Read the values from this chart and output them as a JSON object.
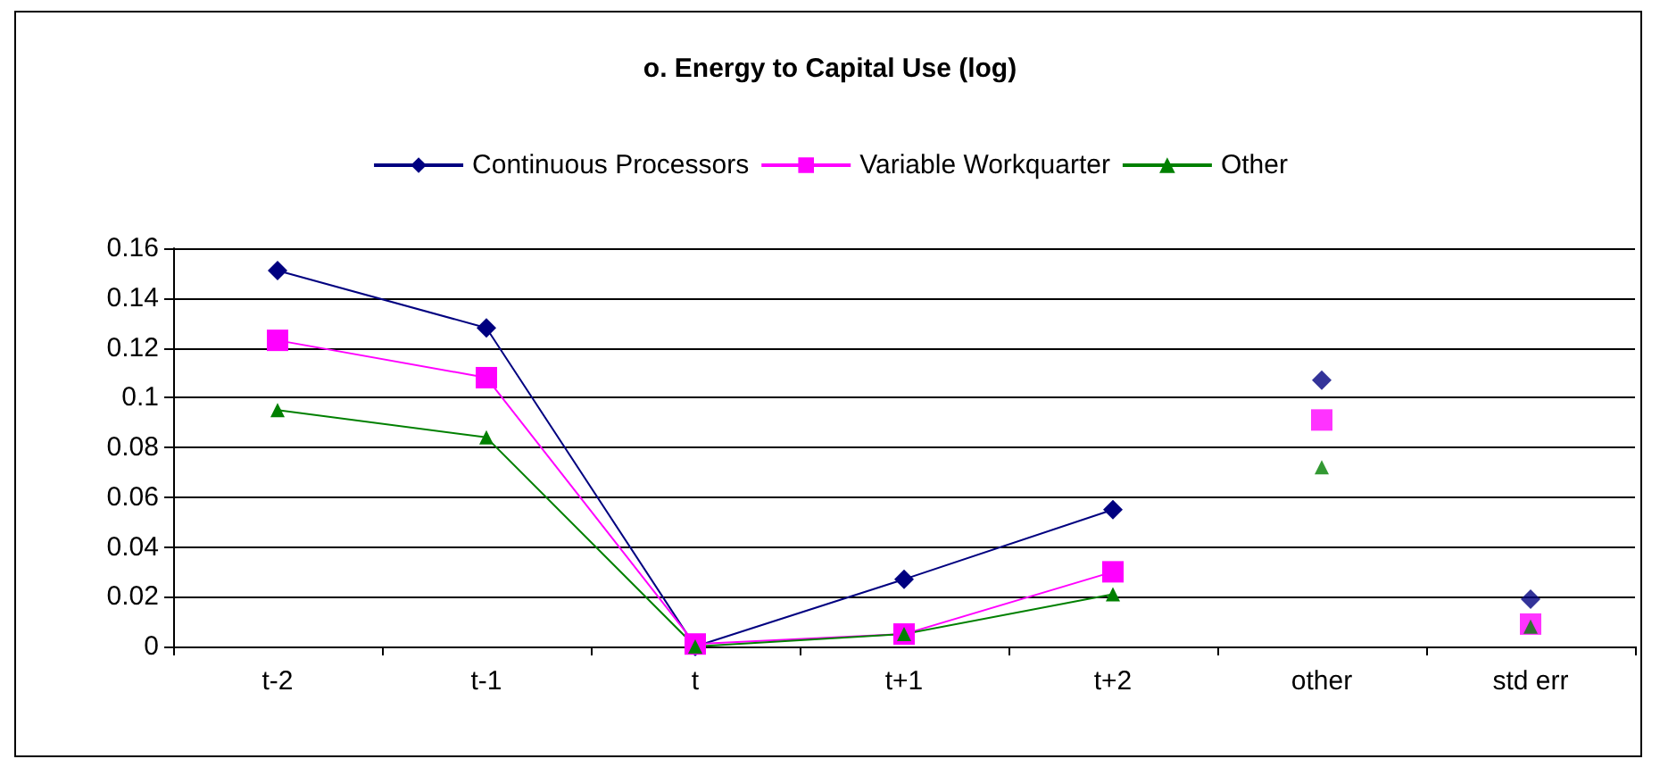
{
  "chart_data": {
    "type": "line",
    "title": "o. Energy to Capital Use (log)",
    "categories": [
      "t-2",
      "t-1",
      "t",
      "t+1",
      "t+2",
      "other",
      "std err"
    ],
    "series": [
      {
        "name": "Continuous Processors",
        "color": "#000080",
        "marker": "diamond",
        "values": [
          0.151,
          0.128,
          0,
          0.027,
          0.055,
          null,
          null
        ]
      },
      {
        "name": "Variable Workquarter",
        "color": "#ff00ff",
        "marker": "square",
        "values": [
          0.123,
          0.108,
          0.001,
          0.005,
          0.03,
          null,
          null
        ]
      },
      {
        "name": "Other",
        "color": "#008000",
        "marker": "triangle",
        "values": [
          0.095,
          0.084,
          0,
          0.005,
          0.021,
          null,
          null
        ]
      },
      {
        "type": "scatter",
        "color": "#000080",
        "marker": "diamond",
        "values": [
          null,
          null,
          null,
          null,
          null,
          0.107,
          0.019
        ]
      },
      {
        "type": "scatter",
        "color": "#ff00ff",
        "marker": "square",
        "values": [
          null,
          null,
          null,
          null,
          null,
          0.091,
          0.009
        ]
      },
      {
        "type": "scatter",
        "color": "#008000",
        "marker": "triangle",
        "values": [
          null,
          null,
          null,
          null,
          null,
          0.072,
          0.008
        ]
      }
    ],
    "ylim": [
      0,
      0.16
    ],
    "yticks": [
      0,
      0.02,
      0.04,
      0.06,
      0.08,
      0.1,
      0.12,
      0.14,
      0.16
    ],
    "grid": "y",
    "legend": "top"
  }
}
